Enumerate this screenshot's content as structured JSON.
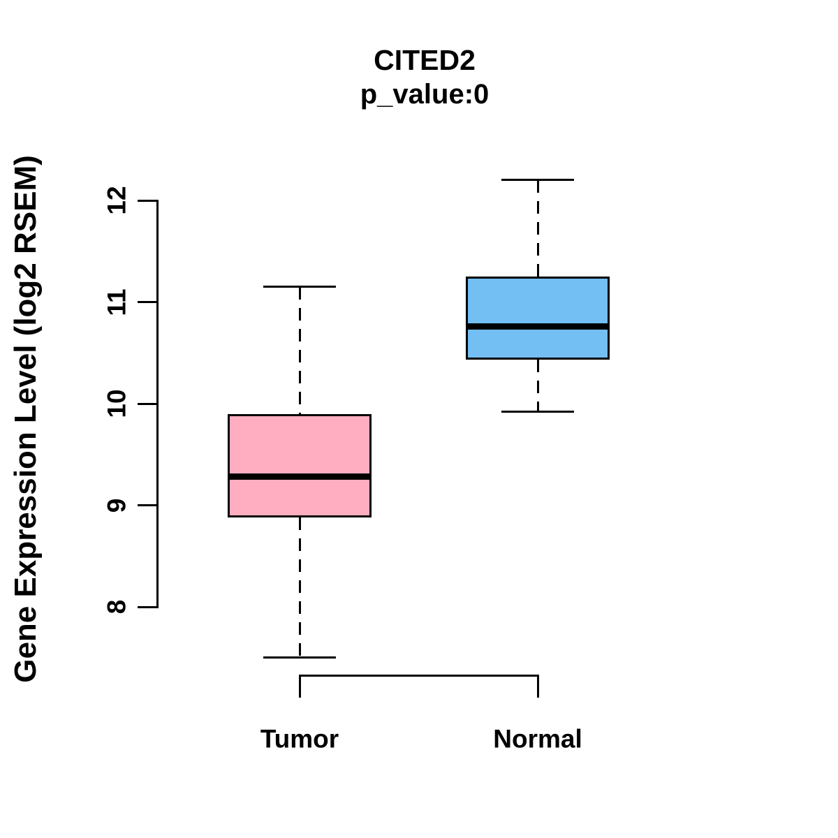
{
  "chart_data": {
    "type": "boxplot",
    "title": "CITED2",
    "subtitle": "p_value:0",
    "ylabel": "Gene Expression Level (log2 RSEM)",
    "xlabel": "",
    "categories": [
      "Tumor",
      "Normal"
    ],
    "yticks": [
      8,
      9,
      10,
      11,
      12
    ],
    "ylim": [
      7.3,
      12.4
    ],
    "grid": false,
    "legend": "none",
    "background": "#ffffff",
    "line_color": "#000000",
    "groups": [
      {
        "name": "Tumor",
        "fill_color": "#ffaec1",
        "whisker_low": 7.5,
        "q1": 8.88,
        "median": 9.28,
        "q3": 9.9,
        "whisker_high": 11.15
      },
      {
        "name": "Normal",
        "fill_color": "#73bff4",
        "whisker_low": 9.92,
        "q1": 10.43,
        "median": 10.76,
        "q3": 11.25,
        "whisker_high": 12.2
      }
    ]
  }
}
